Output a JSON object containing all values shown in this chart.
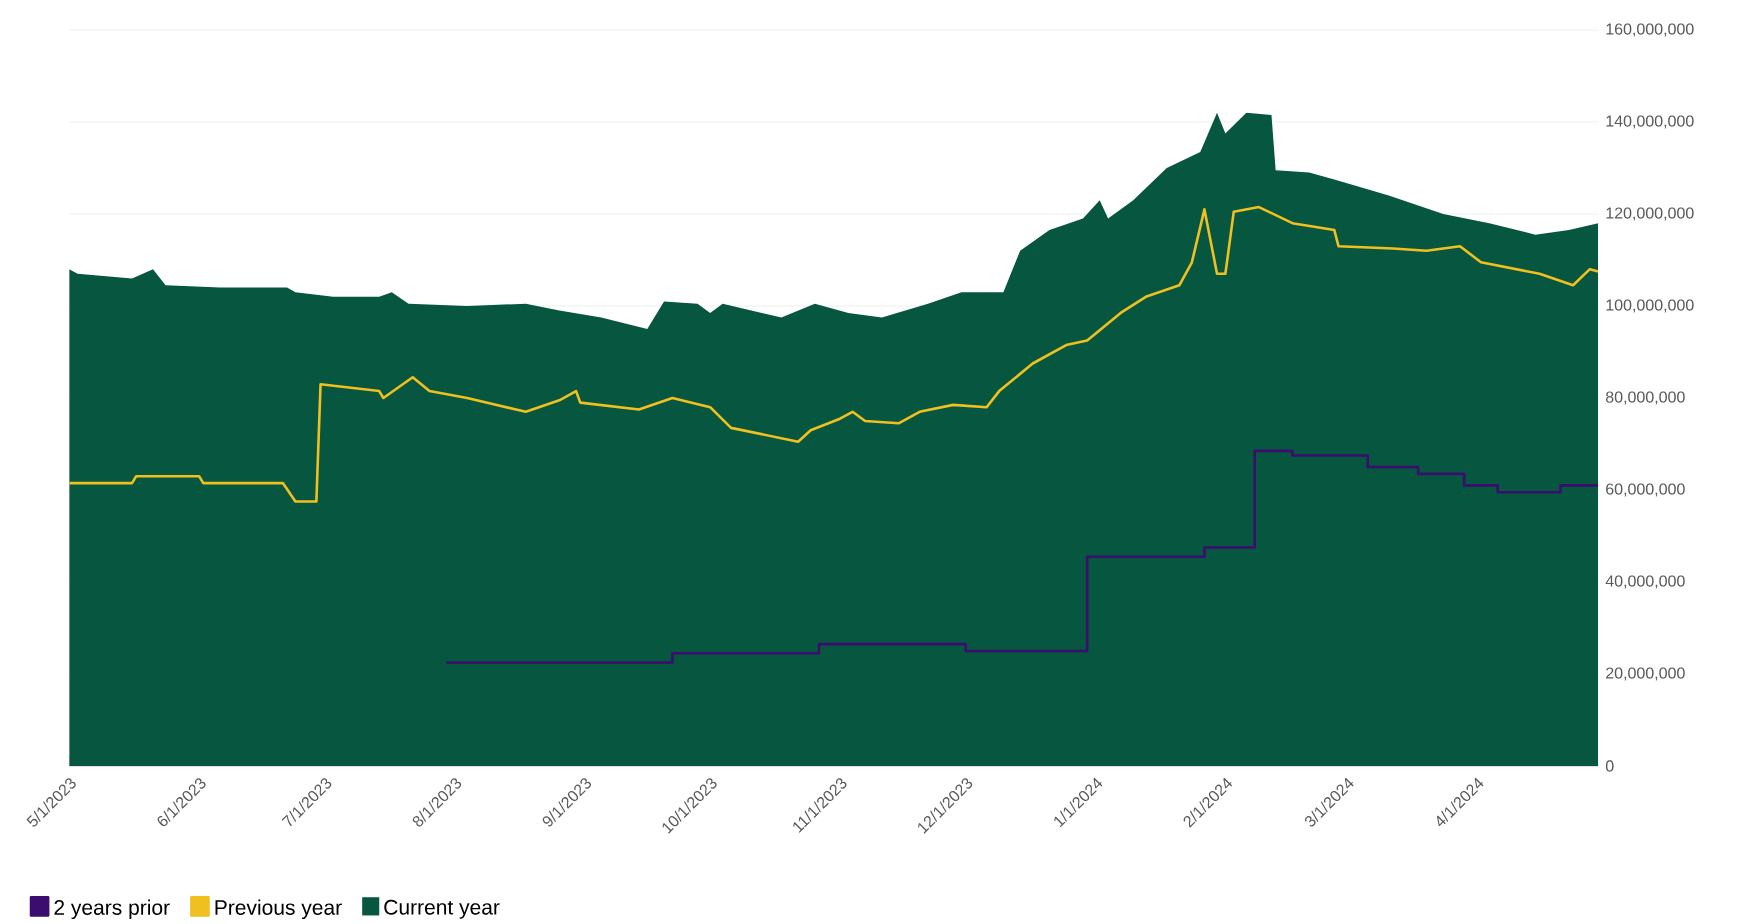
{
  "chart_data": {
    "type": "area",
    "xlim": [
      "2023-05-01",
      "2024-04-30"
    ],
    "xticks": [
      {
        "value": "2023-05-01",
        "label": "5/1/2023"
      },
      {
        "value": "2023-06-01",
        "label": "6/1/2023"
      },
      {
        "value": "2023-07-01",
        "label": "7/1/2023"
      },
      {
        "value": "2023-08-01",
        "label": "8/1/2023"
      },
      {
        "value": "2023-09-01",
        "label": "9/1/2023"
      },
      {
        "value": "2023-10-01",
        "label": "10/1/2023"
      },
      {
        "value": "2023-11-01",
        "label": "11/1/2023"
      },
      {
        "value": "2023-12-01",
        "label": "12/1/2023"
      },
      {
        "value": "2024-01-01",
        "label": "1/1/2024"
      },
      {
        "value": "2024-02-01",
        "label": "2/1/2024"
      },
      {
        "value": "2024-03-01",
        "label": "3/1/2024"
      },
      {
        "value": "2024-04-01",
        "label": "4/1/2024"
      }
    ],
    "ylim": [
      0,
      160000000
    ],
    "yticks": [
      0,
      {
        "value": 20000000,
        "label": "20,000,000"
      },
      {
        "value": 40000000,
        "label": "40,000,000"
      },
      {
        "value": 60000000,
        "label": "60,000,000"
      },
      {
        "value": 80000000,
        "label": "80,000,000"
      },
      {
        "value": 100000000,
        "label": "100,000,000"
      },
      {
        "value": 120000000,
        "label": "120,000,000"
      },
      {
        "value": 140000000,
        "label": "140,000,000"
      },
      {
        "value": 160000000,
        "label": "160,000,000"
      }
    ],
    "grid": "y",
    "legend": "bottom left",
    "series": [
      {
        "name": "Current year",
        "color": "#07563f",
        "x": [
          "2023-05-01",
          "2023-05-03",
          "2023-05-16",
          "2023-05-21",
          "2023-05-24",
          "2023-06-06",
          "2023-06-22",
          "2023-06-24",
          "2023-07-03",
          "2023-07-14",
          "2023-07-17",
          "2023-07-21",
          "2023-08-04",
          "2023-08-18",
          "2023-08-26",
          "2023-09-05",
          "2023-09-16",
          "2023-09-20",
          "2023-09-28",
          "2023-10-01",
          "2023-10-04",
          "2023-10-18",
          "2023-10-26",
          "2023-11-03",
          "2023-11-11",
          "2023-11-22",
          "2023-11-30",
          "2023-12-10",
          "2023-12-14",
          "2023-12-21",
          "2023-12-29",
          "2024-01-02",
          "2024-01-04",
          "2024-01-10",
          "2024-01-18",
          "2024-01-26",
          "2024-01-30",
          "2024-02-01",
          "2024-02-06",
          "2024-02-12",
          "2024-02-13",
          "2024-02-21",
          "2024-02-27",
          "2024-03-11",
          "2024-03-24",
          "2024-04-04",
          "2024-04-15",
          "2024-04-23",
          "2024-04-30"
        ],
        "values": [
          108000000,
          107000000,
          106000000,
          108000000,
          104500000,
          104000000,
          104000000,
          103000000,
          102000000,
          102000000,
          103000000,
          100500000,
          100000000,
          100500000,
          99000000,
          97500000,
          95000000,
          101000000,
          100500000,
          98500000,
          100500000,
          97500000,
          100500000,
          98500000,
          97500000,
          100500000,
          103000000,
          103000000,
          112000000,
          116500000,
          119000000,
          123000000,
          119000000,
          123000000,
          130000000,
          133500000,
          142000000,
          137500000,
          142000000,
          141500000,
          129500000,
          129000000,
          127500000,
          124000000,
          120000000,
          118000000,
          115500000,
          116500000,
          118000000
        ]
      },
      {
        "name": "Previous year",
        "type": "line",
        "color": "#f0c020",
        "x": [
          "2023-05-01",
          "2023-05-16",
          "2023-05-17",
          "2023-06-01",
          "2023-06-02",
          "2023-06-21",
          "2023-06-24",
          "2023-06-29",
          "2023-06-30",
          "2023-07-14",
          "2023-07-15",
          "2023-07-22",
          "2023-07-26",
          "2023-08-04",
          "2023-08-18",
          "2023-08-26",
          "2023-08-30",
          "2023-08-31",
          "2023-09-14",
          "2023-09-22",
          "2023-10-01",
          "2023-10-06",
          "2023-10-22",
          "2023-10-25",
          "2023-11-01",
          "2023-11-04",
          "2023-11-07",
          "2023-11-15",
          "2023-11-20",
          "2023-11-28",
          "2023-12-06",
          "2023-12-09",
          "2023-12-17",
          "2023-12-25",
          "2023-12-30",
          "2024-01-07",
          "2024-01-13",
          "2024-01-21",
          "2024-01-24",
          "2024-01-27",
          "2024-01-30",
          "2024-02-01",
          "2024-02-03",
          "2024-02-09",
          "2024-02-17",
          "2024-02-27",
          "2024-02-28",
          "2024-03-12",
          "2024-03-20",
          "2024-03-28",
          "2024-04-02",
          "2024-04-16",
          "2024-04-24",
          "2024-04-28",
          "2024-04-30"
        ],
        "values": [
          61500000,
          61500000,
          63000000,
          63000000,
          61500000,
          61500000,
          57500000,
          57500000,
          83000000,
          81500000,
          80000000,
          84500000,
          81500000,
          80000000,
          77000000,
          79500000,
          81500000,
          79000000,
          77500000,
          80000000,
          78000000,
          73500000,
          70500000,
          73000000,
          75500000,
          77000000,
          75000000,
          74500000,
          77000000,
          78500000,
          78000000,
          81500000,
          87500000,
          91500000,
          92500000,
          98500000,
          102000000,
          104500000,
          109500000,
          121000000,
          107000000,
          107000000,
          120500000,
          121500000,
          118000000,
          116500000,
          113000000,
          112500000,
          112000000,
          113000000,
          109500000,
          107000000,
          104500000,
          108000000,
          107500000
        ]
      },
      {
        "name": "2 years prior",
        "type": "step",
        "color": "#3a0d6e",
        "x": [
          "2023-07-30",
          "2023-09-22",
          "2023-10-27",
          "2023-12-01",
          "2023-12-30",
          "2024-01-27",
          "2024-02-08",
          "2024-02-17",
          "2024-03-06",
          "2024-03-18",
          "2024-03-29",
          "2024-04-06",
          "2024-04-21",
          "2024-04-30"
        ],
        "values": [
          22500000,
          24500000,
          26500000,
          25000000,
          45500000,
          47500000,
          68500000,
          67500000,
          65000000,
          63500000,
          61000000,
          59500000,
          61000000,
          61000000
        ]
      }
    ]
  }
}
